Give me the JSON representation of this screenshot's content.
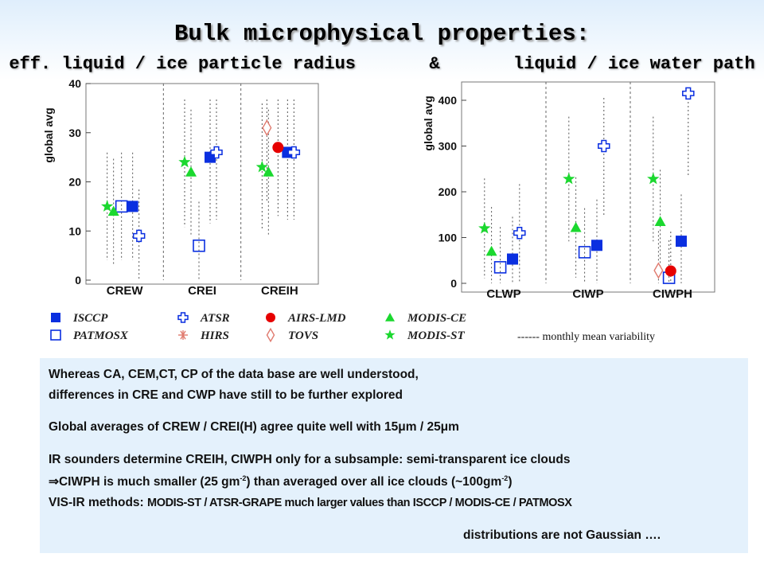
{
  "title": "Bulk microphysical properties:",
  "subtitle_left": "eff. liquid / ice particle radius",
  "subtitle_amp": "&",
  "subtitle_right": "liquid / ice water path",
  "colors": {
    "blue": "#0a2fe0",
    "green": "#1bd82f",
    "red": "#e60000",
    "salmon": "#e07a6e"
  },
  "legend": [
    {
      "label": "ISCCP",
      "marker": "filled-square",
      "color": "#0a2fe0"
    },
    {
      "label": "PATMOSX",
      "marker": "open-square",
      "color": "#0a2fe0"
    },
    {
      "label": "ATSR",
      "marker": "open-cross",
      "color": "#0a2fe0"
    },
    {
      "label": "HIRS",
      "marker": "asterisk",
      "color": "#e07a6e"
    },
    {
      "label": "AIRS-LMD",
      "marker": "filled-circle",
      "color": "#e60000"
    },
    {
      "label": "TOVS",
      "marker": "open-diamond",
      "color": "#e07a6e"
    },
    {
      "label": "MODIS-CE",
      "marker": "filled-triangle",
      "color": "#1bd82f"
    },
    {
      "label": "MODIS-ST",
      "marker": "filled-star",
      "color": "#1bd82f"
    }
  ],
  "variability_note": "------ monthly mean variability",
  "chart_data": [
    {
      "type": "scatter",
      "ylabel": "global avg",
      "ylim": [
        0,
        40
      ],
      "yticks": [
        "0",
        "10",
        "20",
        "30",
        "40"
      ],
      "categories": [
        "CREW",
        "CREI",
        "CREIH"
      ],
      "series": [
        {
          "name": "ISCCP",
          "points": [
            [
              0,
              15
            ],
            [
              1,
              25
            ],
            [
              2,
              26
            ]
          ]
        },
        {
          "name": "PATMOSX",
          "points": [
            [
              0,
              15
            ],
            [
              1,
              7
            ]
          ]
        },
        {
          "name": "ATSR",
          "points": [
            [
              0,
              9
            ],
            [
              1,
              26
            ],
            [
              2,
              26
            ]
          ]
        },
        {
          "name": "AIRS-LMD",
          "points": [
            [
              2,
              27
            ]
          ]
        },
        {
          "name": "TOVS",
          "points": [
            [
              2,
              31
            ]
          ]
        },
        {
          "name": "MODIS-CE",
          "points": [
            [
              0,
              14
            ],
            [
              1,
              22
            ],
            [
              2,
              22
            ]
          ]
        },
        {
          "name": "MODIS-ST",
          "points": [
            [
              0,
              15
            ],
            [
              1,
              24
            ],
            [
              2,
              23
            ]
          ]
        }
      ]
    },
    {
      "type": "scatter",
      "ylabel": "global avg",
      "ylim": [
        0,
        440
      ],
      "yticks": [
        "0",
        "100",
        "200",
        "300",
        "400"
      ],
      "categories": [
        "CLWP",
        "CIWP",
        "CIWPH"
      ],
      "series": [
        {
          "name": "ISCCP",
          "points": [
            [
              0,
              53
            ],
            [
              1,
              83
            ],
            [
              2,
              92
            ]
          ]
        },
        {
          "name": "PATMOSX",
          "points": [
            [
              0,
              35
            ],
            [
              1,
              68
            ],
            [
              2,
              12
            ]
          ]
        },
        {
          "name": "ATSR",
          "points": [
            [
              0,
              110
            ],
            [
              1,
              300
            ],
            [
              2,
              415
            ]
          ]
        },
        {
          "name": "AIRS-LMD",
          "points": [
            [
              2,
              27
            ]
          ]
        },
        {
          "name": "TOVS",
          "points": [
            [
              2,
              28
            ]
          ]
        },
        {
          "name": "MODIS-CE",
          "points": [
            [
              0,
              70
            ],
            [
              1,
              122
            ],
            [
              2,
              135
            ]
          ]
        },
        {
          "name": "MODIS-ST",
          "points": [
            [
              0,
              120
            ],
            [
              1,
              228
            ],
            [
              2,
              228
            ]
          ]
        }
      ]
    }
  ],
  "text": {
    "p1a": "Whereas CA, CEM,CT, CP of the data base are well understood,",
    "p1b": "differences in CRE and CWP have still to be further explored",
    "p2": "Global averages of CREW / CREI(H) agree quite well with 15μm / 25μm",
    "p3a": "IR sounders determine CREIH, CIWPH only for a subsample: semi-transparent ice clouds",
    "p3b_pre": "⇒CIWPH is much smaller (25 gm",
    "p3b_sup1": "-2",
    "p3b_mid": ") than averaged over all ice clouds (~100gm",
    "p3b_sup2": "-2",
    "p3b_post": ")",
    "p4_pre": "VIS-IR methods: ",
    "p4_cond": "MODIS-ST / ATSR-GRAPE much larger values than ISCCP / MODIS-CE / PATMOSX",
    "p5": "distributions are not Gaussian …."
  }
}
